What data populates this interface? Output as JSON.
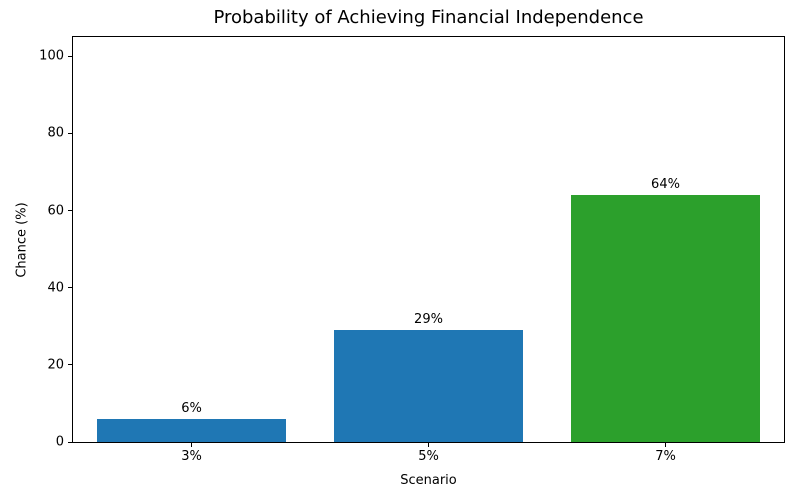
{
  "chart_data": {
    "type": "bar",
    "title": "Probability of Achieving Financial Independence",
    "xlabel": "Scenario",
    "ylabel": "Chance (%)",
    "categories": [
      "3%",
      "5%",
      "7%"
    ],
    "values": [
      6,
      29,
      64
    ],
    "bar_labels": [
      "6%",
      "29%",
      "64%"
    ],
    "bar_colors": [
      "#1f77b4",
      "#1f77b4",
      "#2ca02c"
    ],
    "yticks": [
      0,
      20,
      40,
      60,
      80,
      100
    ],
    "ylim": [
      0,
      105
    ],
    "bar_width_fraction": 0.8,
    "grid": false,
    "legend_position": "none",
    "spine_color": "#000000",
    "background_color": "#ffffff",
    "text_color": "#000000"
  }
}
